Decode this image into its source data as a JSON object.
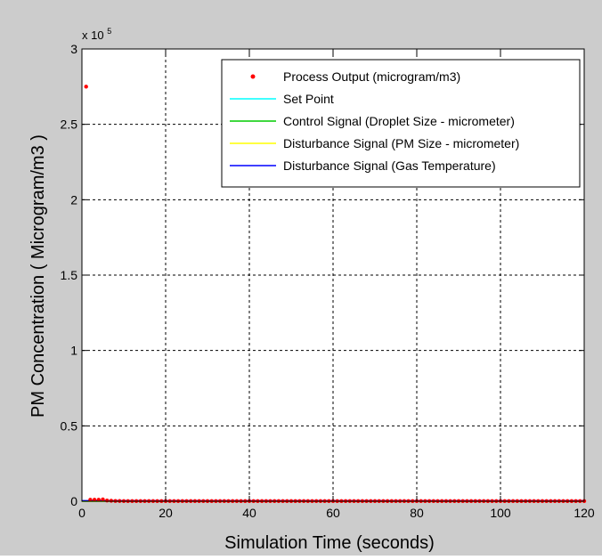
{
  "chart_data": {
    "type": "scatter",
    "title": "",
    "xlabel": "Simulation Time (seconds)",
    "ylabel": "PM Concentration ( Microgram/m3 )",
    "xlim": [
      0,
      120
    ],
    "ylim": [
      0,
      300000
    ],
    "x_ticks": [
      0,
      20,
      40,
      60,
      80,
      100,
      120
    ],
    "x_tick_labels": [
      "0",
      "20",
      "40",
      "60",
      "80",
      "100",
      "120"
    ],
    "y_ticks": [
      0,
      50000,
      100000,
      150000,
      200000,
      250000,
      300000
    ],
    "y_tick_labels": [
      "0",
      "0.5",
      "1",
      "1.5",
      "2",
      "2.5",
      "3"
    ],
    "y_exponent_label": "x 10",
    "y_exponent_power": "5",
    "grid": true,
    "legend_position": "top-right",
    "series": [
      {
        "name": "Process Output (microgram/m3)",
        "color": "#ff0000",
        "marker": "point",
        "x": [
          1,
          2,
          3,
          4,
          5,
          6,
          7,
          8,
          9,
          10,
          11,
          12,
          13,
          14,
          15,
          16,
          17,
          18,
          19,
          20,
          21,
          22,
          23,
          24,
          25,
          26,
          27,
          28,
          29,
          30,
          31,
          32,
          33,
          34,
          35,
          36,
          37,
          38,
          39,
          40,
          41,
          42,
          43,
          44,
          45,
          46,
          47,
          48,
          49,
          50,
          51,
          52,
          53,
          54,
          55,
          56,
          57,
          58,
          59,
          60,
          61,
          62,
          63,
          64,
          65,
          66,
          67,
          68,
          69,
          70,
          71,
          72,
          73,
          74,
          75,
          76,
          77,
          78,
          79,
          80,
          81,
          82,
          83,
          84,
          85,
          86,
          87,
          88,
          89,
          90,
          91,
          92,
          93,
          94,
          95,
          96,
          97,
          98,
          99,
          100,
          101,
          102,
          103,
          104,
          105,
          106,
          107,
          108,
          109,
          110,
          111,
          112,
          113,
          114,
          115,
          116,
          117,
          118,
          119,
          120
        ],
        "y": [
          275000,
          1000,
          1000,
          1000,
          1200,
          500,
          300,
          200,
          150,
          100,
          100,
          100,
          100,
          100,
          100,
          100,
          100,
          100,
          100,
          100,
          100,
          100,
          100,
          100,
          100,
          100,
          100,
          100,
          100,
          100,
          100,
          100,
          100,
          100,
          100,
          100,
          100,
          100,
          100,
          100,
          100,
          100,
          100,
          100,
          100,
          100,
          100,
          100,
          100,
          100,
          100,
          100,
          100,
          100,
          100,
          100,
          100,
          100,
          100,
          100,
          100,
          100,
          100,
          100,
          100,
          100,
          100,
          100,
          100,
          100,
          100,
          100,
          100,
          100,
          100,
          100,
          100,
          100,
          100,
          100,
          100,
          100,
          100,
          100,
          100,
          100,
          100,
          100,
          100,
          100,
          100,
          100,
          100,
          100,
          100,
          100,
          100,
          100,
          100,
          100,
          100,
          100,
          100,
          100,
          100,
          100,
          100,
          100,
          100,
          100,
          100,
          100,
          100,
          100,
          100,
          100,
          100,
          100,
          100,
          100
        ]
      },
      {
        "name": "Set Point",
        "color": "#00ffff",
        "marker": "line",
        "x": [
          0,
          120
        ],
        "y": [
          10,
          10
        ]
      },
      {
        "name": "Control Signal (Droplet Size - micrometer)",
        "color": "#00cc00",
        "marker": "line",
        "x": [
          0,
          120
        ],
        "y": [
          10,
          10
        ]
      },
      {
        "name": "Disturbance Signal (PM Size - micrometer)",
        "color": "#ffff00",
        "marker": "line",
        "x": [
          0,
          120
        ],
        "y": [
          5,
          5
        ]
      },
      {
        "name": "Disturbance Signal (Gas Temperature)",
        "color": "#0000ff",
        "marker": "line",
        "x": [
          0,
          120
        ],
        "y": [
          400,
          400
        ]
      }
    ]
  }
}
